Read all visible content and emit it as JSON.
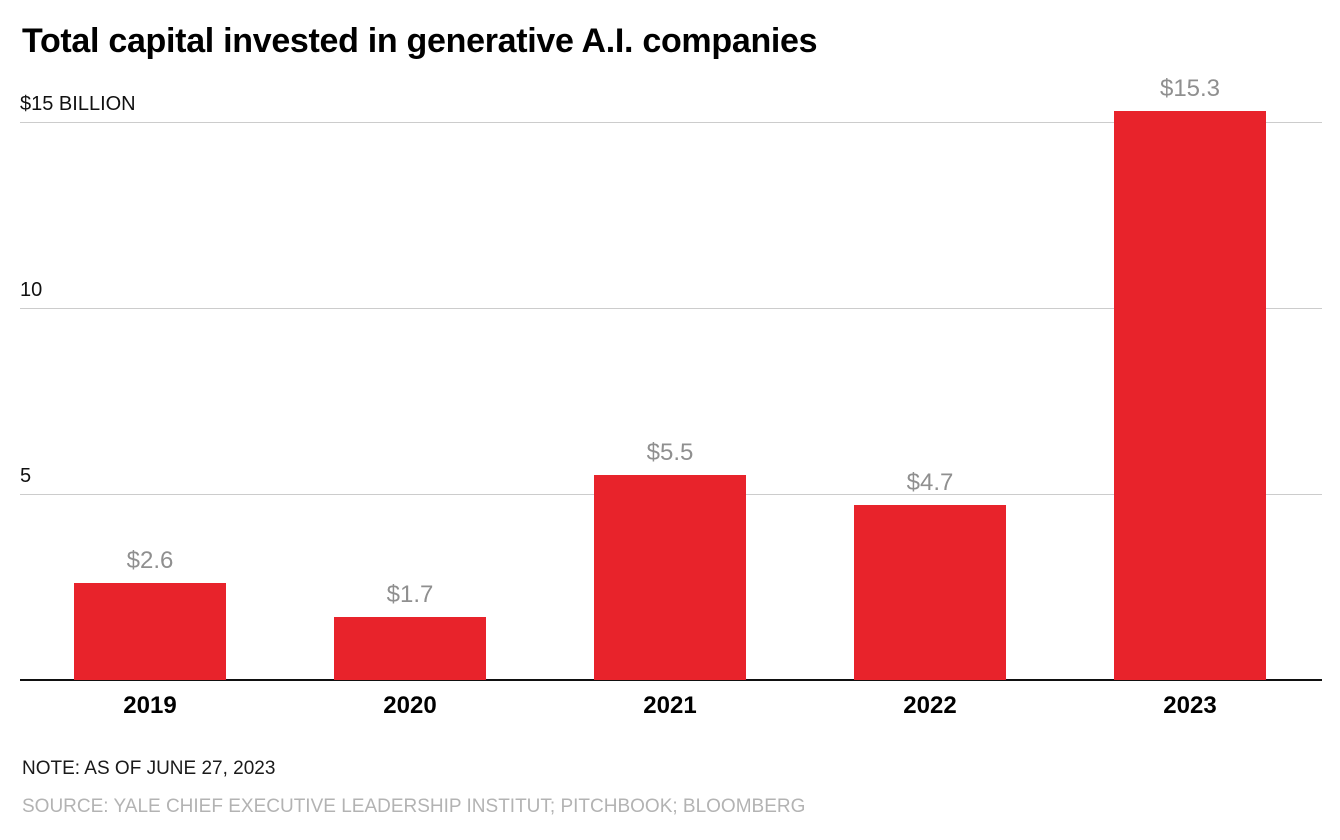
{
  "title": "Total capital invested in generative A.I. companies",
  "note": "NOTE: AS OF JUNE 27, 2023",
  "source": "SOURCE: YALE CHIEF EXECUTIVE LEADERSHIP INSTITUT; PITCHBOOK; BLOOMBERG",
  "colors": {
    "bar": "#e8232b",
    "grid": "#cccccc",
    "baseline": "#111111",
    "value_label": "#8f8f8f",
    "y_tick": "#111111",
    "x_tick": "#000000",
    "note": "#1a1a1a",
    "source": "#b3b3b3"
  },
  "chart_data": {
    "type": "bar",
    "title": "Total capital invested in generative A.I. companies",
    "categories": [
      "2019",
      "2020",
      "2021",
      "2022",
      "2023"
    ],
    "values": [
      2.6,
      1.7,
      5.5,
      4.7,
      15.3
    ],
    "value_labels": [
      "$2.6",
      "$1.7",
      "$5.5",
      "$4.7",
      "$15.3"
    ],
    "unit": "billion USD",
    "xlabel": "",
    "ylabel": "",
    "ylim": [
      0,
      15.9
    ],
    "y_ticks": [
      {
        "value": 15,
        "label": "$15 BILLION"
      },
      {
        "value": 10,
        "label": "10"
      },
      {
        "value": 5,
        "label": "5"
      }
    ],
    "grid": true,
    "legend": "none",
    "bar_color": "#e8232b"
  }
}
